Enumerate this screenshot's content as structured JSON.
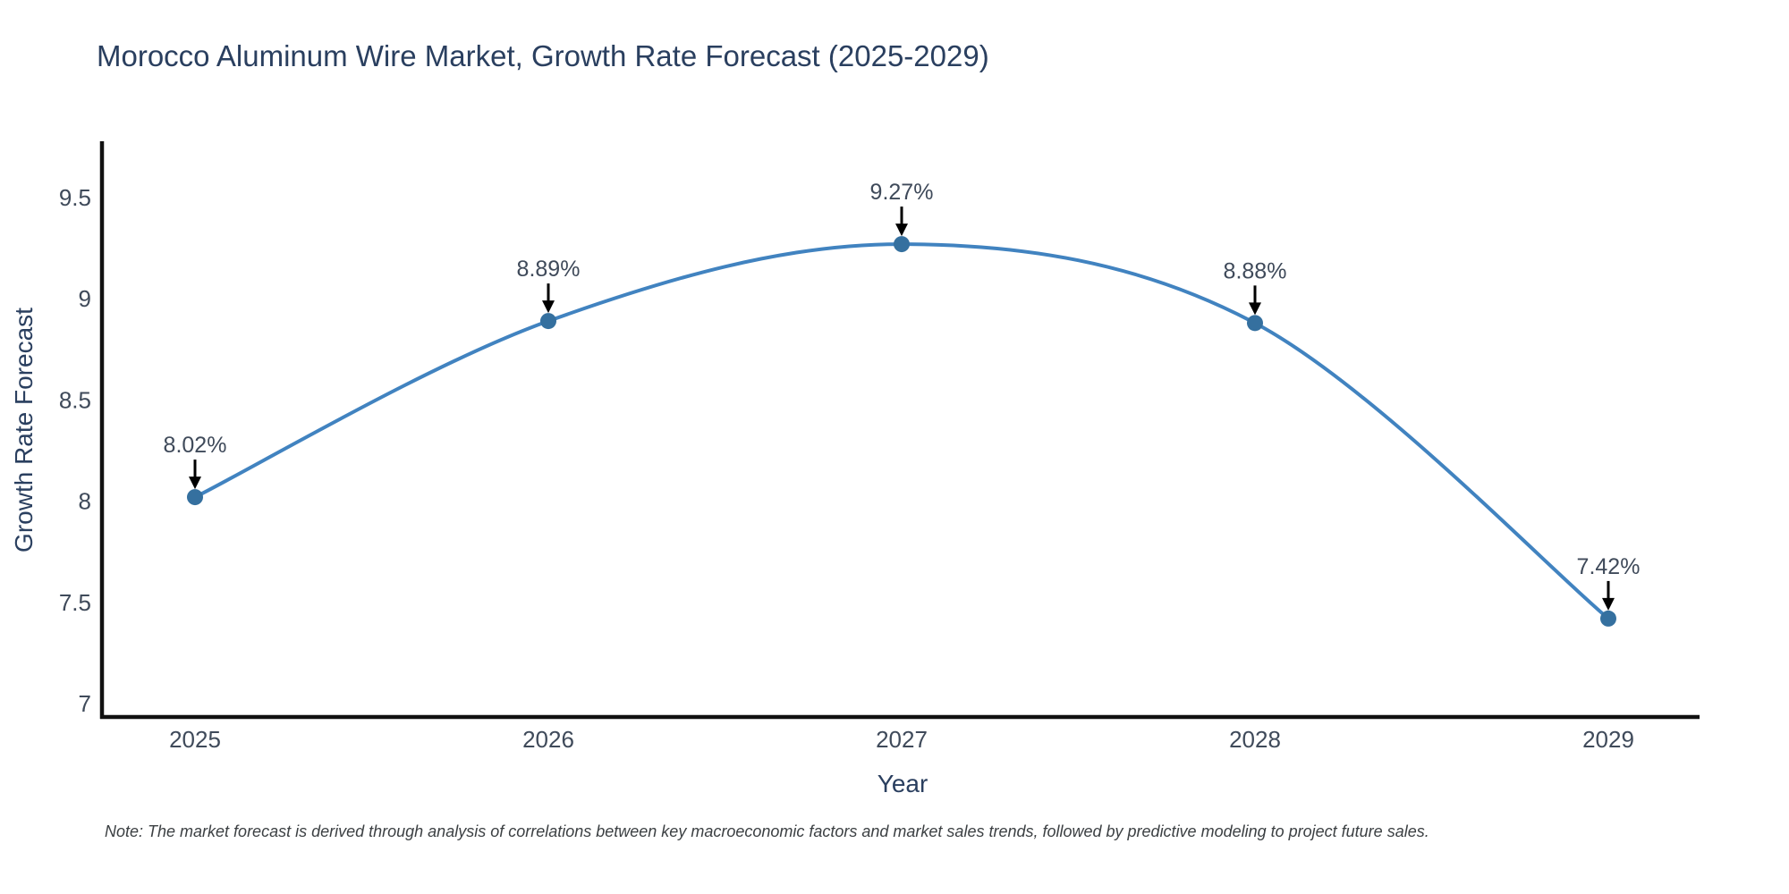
{
  "title": {
    "text": "Morocco Aluminum Wire Market, Growth Rate Forecast (2025-2029)"
  },
  "chart_data": {
    "type": "line",
    "title": "Morocco Aluminum Wire Market, Growth Rate Forecast (2025-2029)",
    "x": [
      2025,
      2026,
      2027,
      2028,
      2029
    ],
    "series": [
      {
        "name": "Growth Rate Forecast",
        "values": [
          8.02,
          8.89,
          9.27,
          8.88,
          7.42
        ]
      }
    ],
    "point_labels": [
      "8.02%",
      "8.89%",
      "9.27%",
      "8.88%",
      "7.42%"
    ],
    "xlabel": "Year",
    "ylabel": "Growth Rate Forecast",
    "x_tick_labels": [
      "2025",
      "2026",
      "2027",
      "2028",
      "2029"
    ],
    "y_ticks": [
      7,
      7.5,
      8,
      8.5,
      9,
      9.5
    ],
    "y_tick_labels": [
      "7",
      "7.5",
      "8",
      "8.5",
      "9",
      "9.5"
    ],
    "ylim": [
      6.93,
      9.77
    ],
    "xlim": [
      2024.74,
      2029.26
    ],
    "line_shape": "spline",
    "grid": false,
    "legend": "none",
    "colors": {
      "line": "#4183c0",
      "marker": "#35709f",
      "axis": "#111111",
      "title_text": "#2a3f5f",
      "tick_text": "#3f4a5a",
      "annotation_text": "#3f4a5a",
      "arrow": "#000000",
      "background": "#ffffff"
    }
  },
  "note": {
    "text": "Note: The market forecast is derived through analysis of correlations between key macroeconomic factors and market sales trends, followed by predictive modeling to project future sales."
  }
}
